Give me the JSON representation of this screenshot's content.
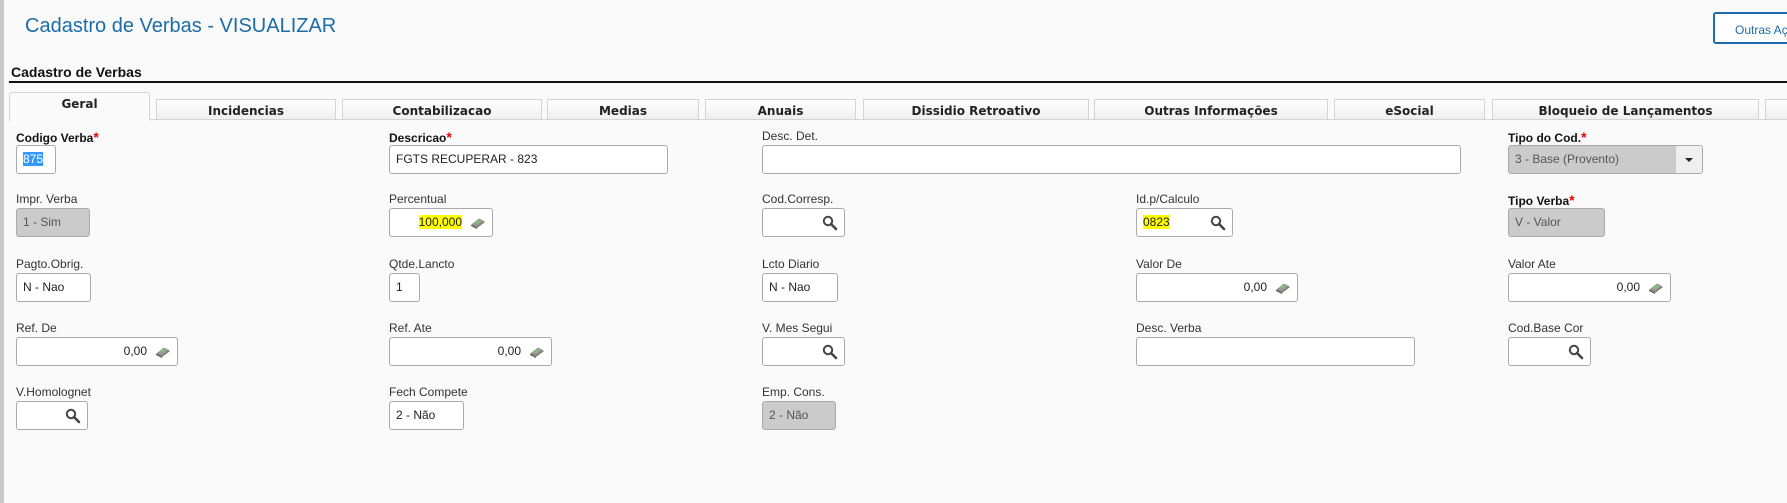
{
  "header": {
    "title": "Cadastro de Verbas - VISUALIZAR",
    "actions_button": "Outras Ações"
  },
  "section_title": "Cadastro de Verbas",
  "tabs": [
    {
      "label": "Geral",
      "active": true
    },
    {
      "label": "Incidencias"
    },
    {
      "label": "Contabilizacao"
    },
    {
      "label": "Medias"
    },
    {
      "label": "Anuais"
    },
    {
      "label": "Dissidio Retroativo"
    },
    {
      "label": "Outras Informações"
    },
    {
      "label": "eSocial"
    },
    {
      "label": "Bloqueio de Lançamentos"
    },
    {
      "label": ""
    }
  ],
  "fields": {
    "codigo_verba": {
      "label": "Codigo Verba",
      "value": "875",
      "required": true
    },
    "descricao": {
      "label": "Descricao",
      "value": "FGTS RECUPERAR - 823",
      "required": true
    },
    "desc_det": {
      "label": "Desc. Det.",
      "value": ""
    },
    "tipo_cod": {
      "label": "Tipo do Cod.",
      "value": "3 - Base (Provento)",
      "required": true
    },
    "impr_verba": {
      "label": "Impr. Verba",
      "value": "1 - Sim"
    },
    "percentual": {
      "label": "Percentual",
      "value": "100,000"
    },
    "cod_corresp": {
      "label": "Cod.Corresp.",
      "value": ""
    },
    "id_calculo": {
      "label": "Id.p/Calculo",
      "value": "0823"
    },
    "tipo_verba": {
      "label": "Tipo Verba",
      "value": "V - Valor",
      "required": true
    },
    "pagto_obrig": {
      "label": "Pagto.Obrig.",
      "value": "N - Nao"
    },
    "qtde_lancto": {
      "label": "Qtde.Lancto",
      "value": "1"
    },
    "lcto_diario": {
      "label": "Lcto Diario",
      "value": "N - Nao"
    },
    "valor_de": {
      "label": "Valor De",
      "value": "0,00"
    },
    "valor_ate": {
      "label": "Valor Ate",
      "value": "0,00"
    },
    "ref_de": {
      "label": "Ref. De",
      "value": "0,00"
    },
    "ref_ate": {
      "label": "Ref. Ate",
      "value": "0,00"
    },
    "v_mes_segui": {
      "label": "V. Mes Segui",
      "value": ""
    },
    "desc_verba": {
      "label": "Desc. Verba",
      "value": ""
    },
    "cod_base_cor": {
      "label": "Cod.Base Cor",
      "value": ""
    },
    "v_homolognet": {
      "label": "V.Homolognet",
      "value": ""
    },
    "fech_compete": {
      "label": "Fech Compete",
      "value": "2 - Não"
    },
    "emp_cons": {
      "label": "Emp. Cons.",
      "value": "2 - Não"
    }
  },
  "colors": {
    "accent": "#1b6ca8",
    "highlight": "#ffff00",
    "required": "#ee0000",
    "readonly": "#cbcbcb"
  }
}
